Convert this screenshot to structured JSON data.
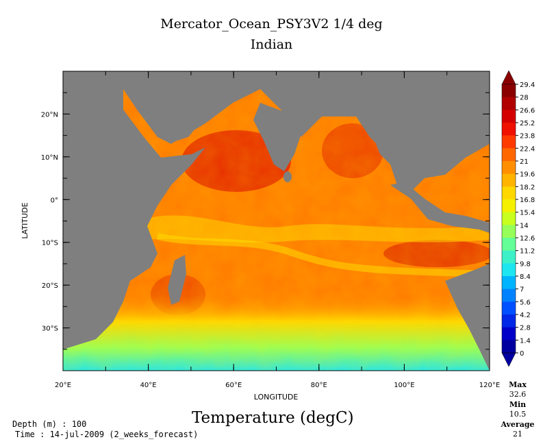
{
  "header": {
    "title": "Mercator_Ocean_PSY3V2 1/4 deg",
    "subtitle": "Indian"
  },
  "axes": {
    "xlabel": "LONGITUDE",
    "ylabel": "LATITUDE",
    "lon_ticks": [
      {
        "value": 20,
        "label": "20°E"
      },
      {
        "value": 40,
        "label": "40°E"
      },
      {
        "value": 60,
        "label": "60°E"
      },
      {
        "value": 80,
        "label": "80°E"
      },
      {
        "value": 100,
        "label": "100°E"
      },
      {
        "value": 120,
        "label": "120°E"
      }
    ],
    "lat_ticks": [
      {
        "value": 20,
        "label": "20°N"
      },
      {
        "value": 10,
        "label": "10°N"
      },
      {
        "value": 0,
        "label": "0°"
      },
      {
        "value": -10,
        "label": "10°S"
      },
      {
        "value": -20,
        "label": "20°S"
      },
      {
        "value": -30,
        "label": "30°S"
      }
    ],
    "lon_range": [
      20,
      120
    ],
    "lat_range": [
      -40,
      30
    ]
  },
  "colorbar": {
    "labels": [
      "29.4",
      "28",
      "26.6",
      "25.2",
      "23.8",
      "22.4",
      "21",
      "19.6",
      "18.2",
      "16.8",
      "15.4",
      "14",
      "12.6",
      "11.2",
      "9.8",
      "8.4",
      "7",
      "5.6",
      "4.2",
      "2.8",
      "1.4",
      "0"
    ],
    "colors": [
      "#8a0000",
      "#b00000",
      "#d40000",
      "#f01000",
      "#ff3a00",
      "#ff6600",
      "#ff8f00",
      "#ffb400",
      "#ffd800",
      "#f4f000",
      "#c8ff1e",
      "#96ff5a",
      "#64ff96",
      "#3cf0c8",
      "#1ee6f0",
      "#00b4ff",
      "#0082ff",
      "#0050ff",
      "#0028e6",
      "#0000c8",
      "#0000a0"
    ]
  },
  "footer": {
    "variable": "Temperature (degC)",
    "depth": "Depth (m) : 100",
    "time": "Time : 14-jul-2009 (2_weeks_forecast)"
  },
  "stats": {
    "max_label": "Max",
    "max_value": "32.6",
    "min_label": "Min",
    "min_value": "10.5",
    "avg_label": "Average",
    "avg_value": "21"
  },
  "colors": {
    "land": "#7f7f7f",
    "ocean_base": "#ff7a00"
  }
}
